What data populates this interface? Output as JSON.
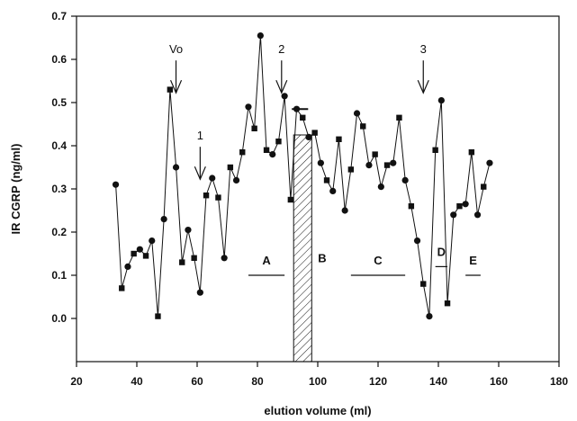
{
  "chart_data": {
    "type": "line",
    "title": "",
    "xlabel": "elution volume (ml)",
    "ylabel": "IR CGRP (ng/ml)",
    "xlim": [
      20,
      180
    ],
    "ylim": [
      -0.1,
      0.7
    ],
    "xticks": [
      20,
      40,
      60,
      80,
      100,
      120,
      140,
      160,
      180
    ],
    "yticks": [
      0.0,
      0.1,
      0.2,
      0.3,
      0.4,
      0.5,
      0.6,
      0.7
    ],
    "ytick_labels": [
      "0.0",
      "0.1",
      "0.2",
      "0.3",
      "0.4",
      "0.5",
      "0.6",
      "0.7"
    ],
    "grid": false,
    "series": [
      {
        "x": [
          33,
          35,
          37,
          39,
          41,
          43,
          45,
          47,
          49,
          51,
          53,
          55,
          57,
          59,
          61,
          63,
          65,
          67,
          69,
          71,
          73,
          75,
          77,
          79,
          81,
          83,
          85,
          87,
          89,
          91,
          93,
          95,
          97,
          99,
          101,
          103,
          105,
          107,
          109,
          111,
          113,
          115,
          117,
          119,
          121,
          123,
          125,
          127,
          129,
          131,
          133,
          135,
          137,
          139,
          141,
          143,
          145,
          147,
          149,
          151,
          153,
          155,
          157
        ],
        "y": [
          0.31,
          0.07,
          0.12,
          0.15,
          0.16,
          0.145,
          0.18,
          0.005,
          0.23,
          0.53,
          0.35,
          0.13,
          0.205,
          0.14,
          0.06,
          0.285,
          0.325,
          0.28,
          0.14,
          0.35,
          0.32,
          0.385,
          0.49,
          0.44,
          0.655,
          0.39,
          0.38,
          0.41,
          0.515,
          0.275,
          0.485,
          0.465,
          0.42,
          0.43,
          0.36,
          0.32,
          0.295,
          0.415,
          0.25,
          0.345,
          0.475,
          0.445,
          0.355,
          0.38,
          0.305,
          0.355,
          0.36,
          0.465,
          0.32,
          0.26,
          0.18,
          0.08,
          0.005,
          0.39,
          0.505,
          0.035,
          0.24,
          0.26,
          0.265,
          0.385,
          0.24,
          0.305,
          0.36
        ]
      }
    ],
    "annotations": [
      {
        "text": "Vo",
        "x": 53,
        "y": 0.61
      },
      {
        "text": "1",
        "x": 61,
        "y": 0.41
      },
      {
        "text": "2",
        "x": 88,
        "y": 0.61
      },
      {
        "text": "3",
        "x": 135,
        "y": 0.61
      }
    ],
    "regions": [
      {
        "label": "A",
        "x_start": 77,
        "x_end": 89
      },
      {
        "label": "B",
        "x_start": 92,
        "x_end": 98
      },
      {
        "label": "C",
        "x_start": 111,
        "x_end": 129
      },
      {
        "label": "D",
        "x_start": 139,
        "x_end": 143
      },
      {
        "label": "E",
        "x_start": 149,
        "x_end": 154
      }
    ]
  }
}
